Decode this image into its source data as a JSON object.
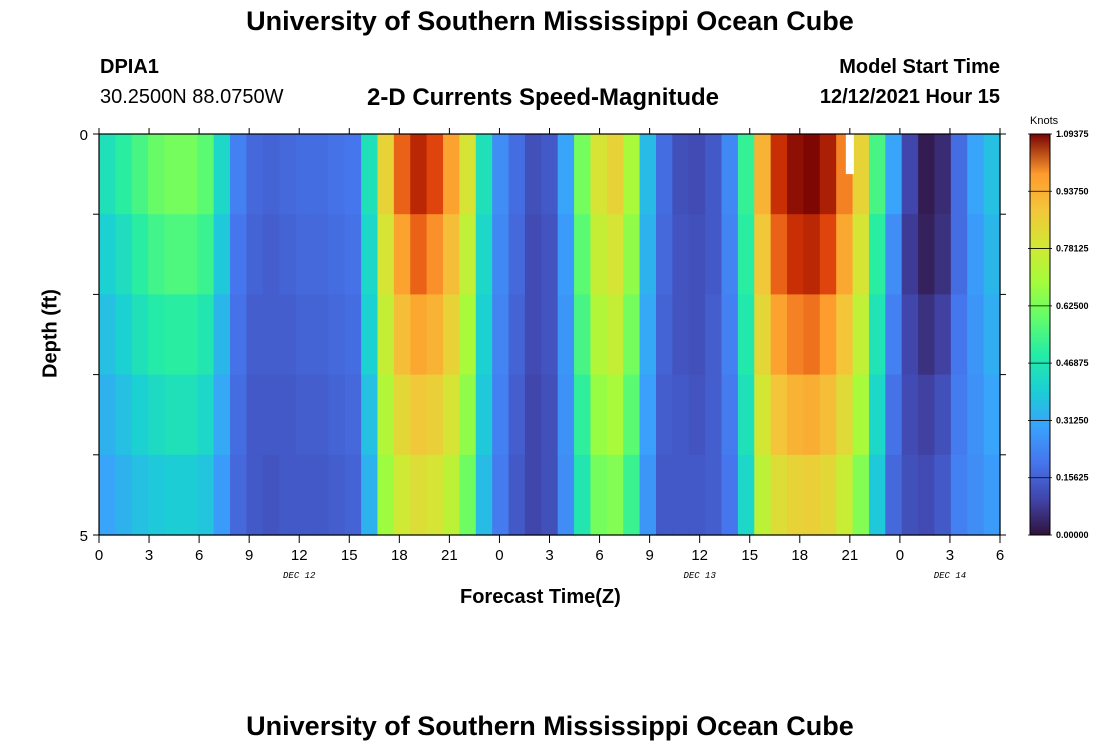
{
  "header": {
    "title": "University of Southern Mississippi Ocean Cube",
    "station": "DPIA1",
    "coords": "30.2500N  88.0750W",
    "chart_title": "2-D Currents Speed-Magnitude",
    "model_start_label": "Model Start Time",
    "model_start_value": "12/12/2021 Hour 15",
    "footer_title": "University of Southern Mississippi Ocean Cube"
  },
  "chart_data": {
    "type": "heatmap",
    "title": "2-D Currents Speed-Magnitude",
    "xlabel": "Forecast Time(Z)",
    "ylabel": "Depth (ft)",
    "y_ticks": [
      "0",
      "5"
    ],
    "ylim": [
      0,
      5
    ],
    "x_tick_labels": [
      "0",
      "3",
      "6",
      "9",
      "12",
      "15",
      "18",
      "21",
      "0",
      "3",
      "6",
      "9",
      "12",
      "15",
      "18",
      "21",
      "0",
      "3",
      "6"
    ],
    "date_labels": [
      {
        "label": "DEC 12",
        "hour": 12
      },
      {
        "label": "DEC 13",
        "hour": 36
      },
      {
        "label": "DEC 14",
        "hour": 51
      }
    ],
    "xlim_hours": [
      0,
      54
    ],
    "colorbar": {
      "unit": "Knots",
      "min": 0.0,
      "max": 1.09375,
      "tick_labels": [
        "1.09375",
        "0.93750",
        "0.78125",
        "0.62500",
        "0.46875",
        "0.31250",
        "0.15625",
        "0.00000"
      ],
      "tick_values": [
        1.09375,
        0.9375,
        0.78125,
        0.625,
        0.46875,
        0.3125,
        0.15625,
        0.0
      ]
    },
    "depth_layers": 5,
    "hourly_speed_profile_knots": [
      [
        0.45,
        0.4,
        0.36,
        0.33,
        0.3
      ],
      [
        0.5,
        0.44,
        0.4,
        0.36,
        0.33
      ],
      [
        0.55,
        0.5,
        0.45,
        0.4,
        0.36
      ],
      [
        0.6,
        0.54,
        0.49,
        0.43,
        0.38
      ],
      [
        0.62,
        0.56,
        0.5,
        0.45,
        0.39
      ],
      [
        0.62,
        0.56,
        0.5,
        0.45,
        0.39
      ],
      [
        0.58,
        0.53,
        0.47,
        0.42,
        0.37
      ],
      [
        0.42,
        0.38,
        0.34,
        0.31,
        0.28
      ],
      [
        0.22,
        0.2,
        0.19,
        0.18,
        0.17
      ],
      [
        0.17,
        0.16,
        0.15,
        0.14,
        0.14
      ],
      [
        0.16,
        0.15,
        0.15,
        0.14,
        0.13
      ],
      [
        0.17,
        0.16,
        0.15,
        0.14,
        0.14
      ],
      [
        0.18,
        0.17,
        0.16,
        0.15,
        0.14
      ],
      [
        0.18,
        0.17,
        0.16,
        0.15,
        0.14
      ],
      [
        0.19,
        0.18,
        0.17,
        0.16,
        0.15
      ],
      [
        0.2,
        0.19,
        0.18,
        0.17,
        0.16
      ],
      [
        0.45,
        0.42,
        0.4,
        0.36,
        0.33
      ],
      [
        0.85,
        0.8,
        0.76,
        0.72,
        0.68
      ],
      [
        1.0,
        0.95,
        0.9,
        0.84,
        0.78
      ],
      [
        1.05,
        1.0,
        0.94,
        0.88,
        0.82
      ],
      [
        1.02,
        0.97,
        0.92,
        0.86,
        0.8
      ],
      [
        0.95,
        0.9,
        0.85,
        0.8,
        0.74
      ],
      [
        0.8,
        0.75,
        0.7,
        0.66,
        0.61
      ],
      [
        0.45,
        0.42,
        0.4,
        0.38,
        0.35
      ],
      [
        0.25,
        0.24,
        0.23,
        0.22,
        0.21
      ],
      [
        0.18,
        0.17,
        0.16,
        0.15,
        0.14
      ],
      [
        0.12,
        0.11,
        0.11,
        0.1,
        0.1
      ],
      [
        0.14,
        0.13,
        0.13,
        0.12,
        0.12
      ],
      [
        0.3,
        0.28,
        0.27,
        0.26,
        0.25
      ],
      [
        0.62,
        0.58,
        0.55,
        0.51,
        0.47
      ],
      [
        0.8,
        0.76,
        0.72,
        0.67,
        0.62
      ],
      [
        0.85,
        0.8,
        0.76,
        0.7,
        0.64
      ],
      [
        0.7,
        0.66,
        0.62,
        0.58,
        0.53
      ],
      [
        0.35,
        0.33,
        0.31,
        0.29,
        0.27
      ],
      [
        0.18,
        0.17,
        0.16,
        0.15,
        0.14
      ],
      [
        0.12,
        0.13,
        0.13,
        0.14,
        0.14
      ],
      [
        0.11,
        0.12,
        0.12,
        0.13,
        0.14
      ],
      [
        0.14,
        0.14,
        0.15,
        0.15,
        0.15
      ],
      [
        0.24,
        0.23,
        0.22,
        0.21,
        0.2
      ],
      [
        0.52,
        0.5,
        0.48,
        0.45,
        0.42
      ],
      [
        0.92,
        0.88,
        0.84,
        0.79,
        0.74
      ],
      [
        1.04,
        1.0,
        0.95,
        0.89,
        0.82
      ],
      [
        1.08,
        1.04,
        0.98,
        0.92,
        0.85
      ],
      [
        1.09,
        1.05,
        0.99,
        0.93,
        0.86
      ],
      [
        1.06,
        1.02,
        0.96,
        0.9,
        0.84
      ],
      [
        0.98,
        0.94,
        0.89,
        0.83,
        0.77
      ],
      [
        0.85,
        0.8,
        0.75,
        0.7,
        0.64
      ],
      [
        0.55,
        0.5,
        0.46,
        0.42,
        0.38
      ],
      [
        0.3,
        0.25,
        0.22,
        0.19,
        0.17
      ],
      [
        0.1,
        0.08,
        0.1,
        0.11,
        0.12
      ],
      [
        0.02,
        0.03,
        0.06,
        0.09,
        0.11
      ],
      [
        0.05,
        0.06,
        0.09,
        0.12,
        0.14
      ],
      [
        0.18,
        0.18,
        0.2,
        0.21,
        0.22
      ],
      [
        0.3,
        0.28,
        0.27,
        0.26,
        0.25
      ],
      [
        0.36,
        0.34,
        0.32,
        0.3,
        0.28
      ]
    ],
    "missing_data_hours": [
      45
    ]
  }
}
